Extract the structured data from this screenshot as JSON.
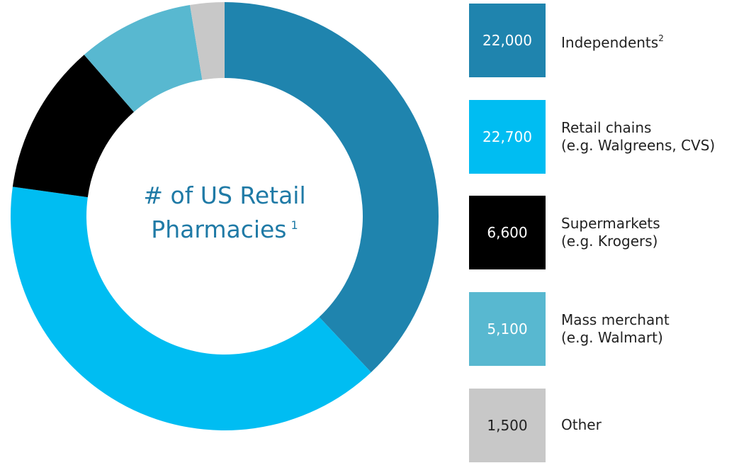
{
  "chart_data": {
    "type": "donut",
    "title": "# of US Retail Pharmacies",
    "title_footnote": "1",
    "categories": [
      "Independents",
      "Retail chains\n(e.g. Walgreens, CVS)",
      "Supermarkets\n (e.g. Krogers)",
      "Mass merchant\n(e.g. Walmart)",
      "Other"
    ],
    "category_footnotes": [
      "2",
      null,
      null,
      null,
      null
    ],
    "values": [
      22000,
      22700,
      6600,
      5100,
      1500
    ],
    "value_labels": [
      "22,000",
      "22,700",
      "6,600",
      "5,100",
      "1,500"
    ],
    "colors": [
      "#1f84ae",
      "#00bdf2",
      "#000000",
      "#58b8d0",
      "#c8c8c8"
    ]
  }
}
